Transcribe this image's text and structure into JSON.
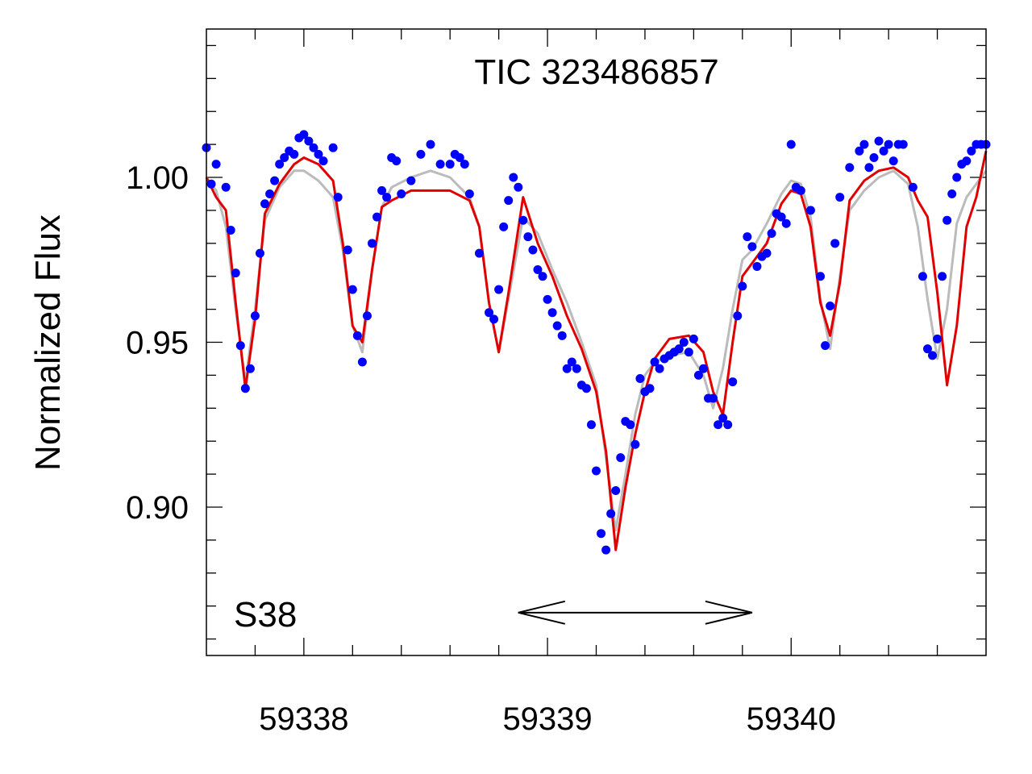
{
  "chart_data": {
    "type": "scatter",
    "title": "TIC 323486857",
    "xlabel": "",
    "ylabel": "Normalized Flux",
    "xlim": [
      59337.6,
      59340.8
    ],
    "ylim": [
      0.855,
      1.045
    ],
    "x_ticks": [
      59338,
      59339,
      59340
    ],
    "x_tick_labels": [
      "59338",
      "59339",
      "59340"
    ],
    "y_ticks": [
      0.9,
      0.95,
      1.0
    ],
    "y_tick_labels": [
      "0.90",
      "0.95",
      "1.00"
    ],
    "annotation": "S38",
    "arrow": {
      "x_start": 59338.88,
      "x_end": 59339.84,
      "y": 0.868
    },
    "colors": {
      "data": "#0000ff",
      "model_red": "#e00000",
      "model_gray": "#bbbbbb"
    },
    "series": [
      {
        "role": "data",
        "x": [
          59337.6,
          59337.62,
          59337.64,
          59337.68,
          59337.7,
          59337.72,
          59337.74,
          59337.76,
          59337.78,
          59337.8,
          59337.82,
          59337.84,
          59337.86,
          59337.88,
          59337.9,
          59337.92,
          59337.94,
          59337.96,
          59337.98,
          59338.0,
          59338.02,
          59338.04,
          59338.06,
          59338.08,
          59338.12,
          59338.14,
          59338.18,
          59338.2,
          59338.22,
          59338.24,
          59338.26,
          59338.28,
          59338.3,
          59338.32,
          59338.34,
          59338.36,
          59338.38,
          59338.4,
          59338.44,
          59338.48,
          59338.52,
          59338.56,
          59338.6,
          59338.62,
          59338.64,
          59338.66,
          59338.68,
          59338.72,
          59338.76,
          59338.78,
          59338.8,
          59338.82,
          59338.84,
          59338.86,
          59338.88,
          59338.9,
          59338.92,
          59338.94,
          59338.96,
          59338.98,
          59339.0,
          59339.02,
          59339.04,
          59339.06,
          59339.08,
          59339.1,
          59339.12,
          59339.14,
          59339.16,
          59339.18,
          59339.2,
          59339.22,
          59339.24,
          59339.26,
          59339.28,
          59339.3,
          59339.32,
          59339.34,
          59339.36,
          59339.38,
          59339.4,
          59339.42,
          59339.44,
          59339.46,
          59339.48,
          59339.5,
          59339.52,
          59339.54,
          59339.56,
          59339.58,
          59339.6,
          59339.62,
          59339.64,
          59339.66,
          59339.68,
          59339.7,
          59339.72,
          59339.74,
          59339.76,
          59339.78,
          59339.8,
          59339.82,
          59339.84,
          59339.86,
          59339.88,
          59339.9,
          59339.92,
          59339.94,
          59339.96,
          59339.98,
          59340.0,
          59340.02,
          59340.04,
          59340.08,
          59340.12,
          59340.14,
          59340.16,
          59340.18,
          59340.2,
          59340.24,
          59340.28,
          59340.3,
          59340.32,
          59340.34,
          59340.36,
          59340.38,
          59340.4,
          59340.42,
          59340.44,
          59340.46,
          59340.5,
          59340.54,
          59340.56,
          59340.58,
          59340.6,
          59340.62,
          59340.64,
          59340.66,
          59340.68,
          59340.7,
          59340.72,
          59340.74,
          59340.76,
          59340.78,
          59340.8
        ],
        "y": [
          1.009,
          0.998,
          1.004,
          0.997,
          0.984,
          0.971,
          0.949,
          0.936,
          0.942,
          0.958,
          0.977,
          0.992,
          0.995,
          0.999,
          1.004,
          1.006,
          1.008,
          1.007,
          1.012,
          1.013,
          1.011,
          1.009,
          1.007,
          1.005,
          1.009,
          0.994,
          0.978,
          0.966,
          0.952,
          0.944,
          0.958,
          0.98,
          0.988,
          0.996,
          0.994,
          1.006,
          1.005,
          0.995,
          0.999,
          1.007,
          1.01,
          1.004,
          1.004,
          1.007,
          1.006,
          1.004,
          0.995,
          0.977,
          0.959,
          0.957,
          0.966,
          0.985,
          0.993,
          1.0,
          0.997,
          0.987,
          0.982,
          0.978,
          0.972,
          0.97,
          0.963,
          0.959,
          0.955,
          0.952,
          0.942,
          0.944,
          0.942,
          0.937,
          0.936,
          0.925,
          0.911,
          0.892,
          0.887,
          0.898,
          0.905,
          0.915,
          0.926,
          0.925,
          0.919,
          0.939,
          0.935,
          0.936,
          0.944,
          0.942,
          0.945,
          0.946,
          0.947,
          0.948,
          0.95,
          0.947,
          0.951,
          0.94,
          0.942,
          0.933,
          0.933,
          0.925,
          0.927,
          0.925,
          0.938,
          0.958,
          0.967,
          0.982,
          0.979,
          0.973,
          0.976,
          0.977,
          0.983,
          0.989,
          0.988,
          0.986,
          1.01,
          0.997,
          0.996,
          0.99,
          0.97,
          0.949,
          0.961,
          0.98,
          0.994,
          1.003,
          1.008,
          1.01,
          1.003,
          1.006,
          1.011,
          1.008,
          1.01,
          1.005,
          1.01,
          1.01,
          0.997,
          0.97,
          0.948,
          0.946,
          0.951,
          0.97,
          0.987,
          0.995,
          1.0,
          1.004,
          1.005,
          1.008,
          1.01,
          1.01,
          1.01
        ]
      },
      {
        "role": "model-gray",
        "x": [
          59337.6,
          59337.64,
          59337.68,
          59337.72,
          59337.76,
          59337.8,
          59337.84,
          59337.9,
          59337.96,
          59338.0,
          59338.06,
          59338.12,
          59338.16,
          59338.2,
          59338.24,
          59338.28,
          59338.32,
          59338.36,
          59338.44,
          59338.52,
          59338.6,
          59338.68,
          59338.72,
          59338.76,
          59338.8,
          59338.84,
          59338.9,
          59338.96,
          59339.02,
          59339.08,
          59339.14,
          59339.2,
          59339.24,
          59339.28,
          59339.32,
          59339.36,
          59339.4,
          59339.44,
          59339.5,
          59339.58,
          59339.64,
          59339.68,
          59339.72,
          59339.76,
          59339.8,
          59339.84,
          59339.9,
          59339.96,
          59340.0,
          59340.04,
          59340.08,
          59340.12,
          59340.16,
          59340.2,
          59340.24,
          59340.3,
          59340.36,
          59340.42,
          59340.48,
          59340.52,
          59340.56,
          59340.6,
          59340.64,
          59340.68,
          59340.72,
          59340.76,
          59340.8
        ],
        "y": [
          1.0,
          0.996,
          0.985,
          0.96,
          0.938,
          0.96,
          0.987,
          0.997,
          1.002,
          1.002,
          0.999,
          0.994,
          0.978,
          0.955,
          0.947,
          0.972,
          0.991,
          0.997,
          1.0,
          1.002,
          1.0,
          0.994,
          0.985,
          0.962,
          0.947,
          0.963,
          0.988,
          0.983,
          0.972,
          0.962,
          0.95,
          0.937,
          0.915,
          0.893,
          0.91,
          0.928,
          0.94,
          0.944,
          0.946,
          0.947,
          0.94,
          0.93,
          0.942,
          0.96,
          0.975,
          0.978,
          0.986,
          0.995,
          0.999,
          0.998,
          0.988,
          0.963,
          0.948,
          0.97,
          0.99,
          0.996,
          1.0,
          1.002,
          0.998,
          0.985,
          0.963,
          0.945,
          0.96,
          0.986,
          0.994,
          0.998,
          1.002
        ]
      },
      {
        "role": "model-red",
        "x": [
          59337.6,
          59337.64,
          59337.68,
          59337.72,
          59337.76,
          59337.8,
          59337.84,
          59337.9,
          59337.96,
          59338.0,
          59338.06,
          59338.12,
          59338.16,
          59338.2,
          59338.24,
          59338.28,
          59338.32,
          59338.36,
          59338.44,
          59338.52,
          59338.6,
          59338.68,
          59338.72,
          59338.76,
          59338.8,
          59338.84,
          59338.9,
          59338.96,
          59339.02,
          59339.08,
          59339.14,
          59339.2,
          59339.24,
          59339.28,
          59339.32,
          59339.36,
          59339.4,
          59339.44,
          59339.5,
          59339.58,
          59339.64,
          59339.68,
          59339.72,
          59339.76,
          59339.8,
          59339.84,
          59339.9,
          59339.96,
          59340.0,
          59340.04,
          59340.08,
          59340.12,
          59340.16,
          59340.2,
          59340.24,
          59340.3,
          59340.36,
          59340.42,
          59340.48,
          59340.52,
          59340.56,
          59340.6,
          59340.64,
          59340.68,
          59340.72,
          59340.76,
          59340.8
        ],
        "y": [
          1.0,
          0.994,
          0.99,
          0.962,
          0.936,
          0.957,
          0.989,
          0.998,
          1.004,
          1.006,
          1.004,
          0.999,
          0.98,
          0.955,
          0.95,
          0.972,
          0.991,
          0.993,
          0.996,
          0.996,
          0.996,
          0.993,
          0.985,
          0.962,
          0.947,
          0.965,
          0.994,
          0.98,
          0.97,
          0.958,
          0.948,
          0.935,
          0.917,
          0.887,
          0.906,
          0.922,
          0.935,
          0.945,
          0.951,
          0.952,
          0.947,
          0.935,
          0.928,
          0.95,
          0.97,
          0.974,
          0.98,
          0.992,
          0.996,
          0.995,
          0.985,
          0.962,
          0.952,
          0.968,
          0.993,
          0.999,
          1.002,
          1.003,
          1.0,
          0.993,
          0.988,
          0.965,
          0.937,
          0.955,
          0.985,
          0.994,
          1.008
        ]
      }
    ]
  }
}
